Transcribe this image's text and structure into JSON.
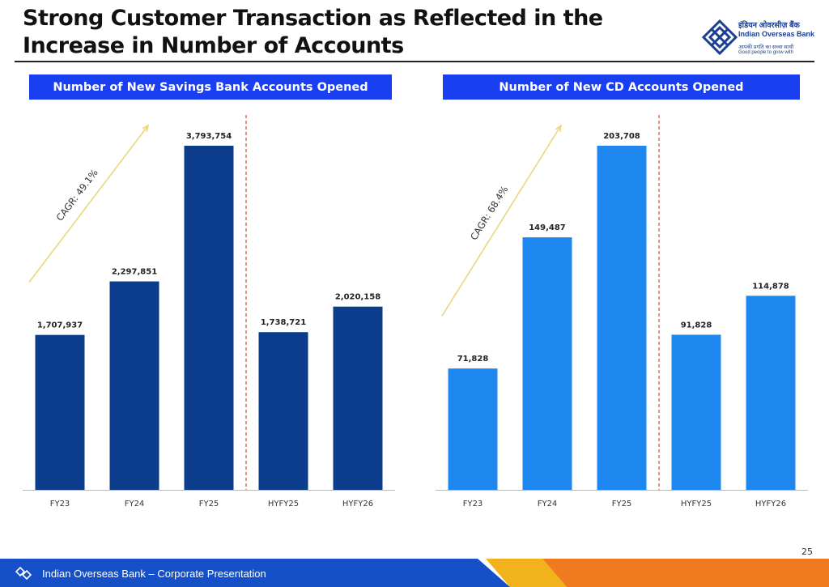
{
  "page": {
    "title": "Strong Customer Transaction as Reflected in the Increase in Number of Accounts",
    "page_number": "25",
    "footer_text": "Indian Overseas Bank – Corporate Presentation"
  },
  "logo": {
    "hindi_name": "इंडियन ओवरसीज़ बैंक",
    "english_name": "Indian Overseas Bank",
    "tagline_hindi": "आपकी प्रगति का सच्चा साथी",
    "tagline_english": "Good people to grow with"
  },
  "colors": {
    "header_bg": "#1a3ef2",
    "bar_savings": "#0b3d8c",
    "bar_cd": "#1e88f0",
    "cagr_arrow": "#e8d87a",
    "divider": "#d64545",
    "footer_blue": "#1550c8",
    "footer_orange": "#f07a20",
    "footer_gold": "#f2b21c"
  },
  "chart_data": [
    {
      "type": "bar",
      "title": "Number of New Savings Bank Accounts Opened",
      "categories": [
        "FY23",
        "FY24",
        "FY25",
        "HYFY25",
        "HYFY26"
      ],
      "values": [
        1707937,
        2297851,
        3793754,
        1738721,
        2020158
      ],
      "value_labels": [
        "1,707,937",
        "2,297,851",
        "3,793,754",
        "1,738,721",
        "2,020,158"
      ],
      "annotation": "CAGR: 49.1%",
      "divider_after_index": 2,
      "ylim": [
        0,
        3793754
      ]
    },
    {
      "type": "bar",
      "title": "Number of New CD Accounts Opened",
      "categories": [
        "FY23",
        "FY24",
        "FY25",
        "HYFY25",
        "HYFY26"
      ],
      "values": [
        71828,
        149487,
        203708,
        91828,
        114878
      ],
      "value_labels": [
        "71,828",
        "149,487",
        "203,708",
        "91,828",
        "114,878"
      ],
      "annotation": "CAGR: 68.4%",
      "divider_after_index": 2,
      "ylim": [
        0,
        203708
      ]
    }
  ]
}
